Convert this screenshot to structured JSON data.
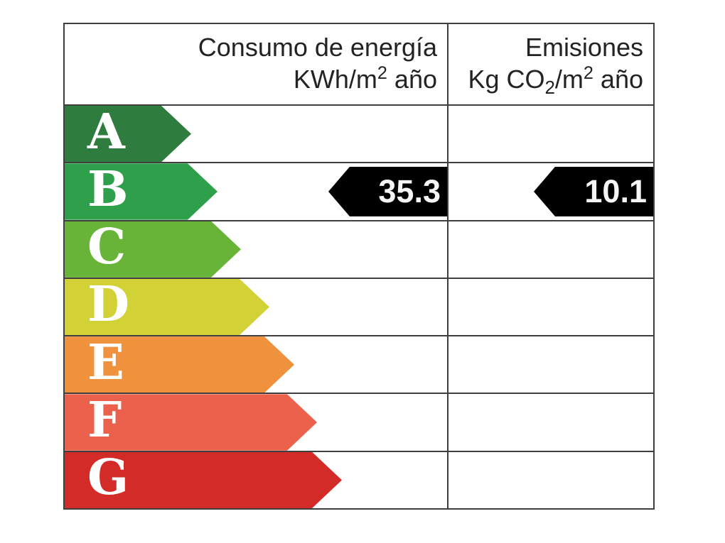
{
  "header": {
    "consumption": {
      "line1": "Consumo de energía",
      "unit_prefix": "KWh/m",
      "unit_exp": "2",
      "unit_suffix": " año"
    },
    "emissions": {
      "line1": "Emisiones",
      "unit_prefix": "Kg CO",
      "unit_sub": "2",
      "unit_mid": "/m",
      "unit_exp": "2",
      "unit_suffix": " año"
    }
  },
  "ratings": [
    {
      "letter": "A",
      "color": "#2f7c3f",
      "arrow_width": 178
    },
    {
      "letter": "B",
      "color": "#2ea04c",
      "arrow_width": 215
    },
    {
      "letter": "C",
      "color": "#68b438",
      "arrow_width": 248
    },
    {
      "letter": "D",
      "color": "#d2d136",
      "arrow_width": 288
    },
    {
      "letter": "E",
      "color": "#ef913d",
      "arrow_width": 323
    },
    {
      "letter": "F",
      "color": "#eb614c",
      "arrow_width": 355
    },
    {
      "letter": "G",
      "color": "#d32b27",
      "arrow_width": 390
    }
  ],
  "current_rating": {
    "letter": "B",
    "consumption_value": "35.3",
    "emissions_value": "10.1"
  },
  "colors": {
    "grid_border": "#3f3f3f",
    "value_arrow_bg": "#000000",
    "value_text": "#f5f5f5",
    "rating_letter_text": "#ffffff",
    "header_text": "#232323"
  },
  "chart_data": {
    "type": "table",
    "title": "Etiqueta de eficiencia energética (energy efficiency certificate label)",
    "columns": [
      "Consumo de energía KWh/m2 año",
      "Emisiones Kg CO2/m2 año"
    ],
    "scale_categories": [
      "A",
      "B",
      "C",
      "D",
      "E",
      "F",
      "G"
    ],
    "scale_colors": [
      "#2f7c3f",
      "#2ea04c",
      "#68b438",
      "#d2d136",
      "#ef913d",
      "#eb614c",
      "#d32b27"
    ],
    "assigned_rating": "B",
    "values": {
      "consumo_energia_kwh_m2_ano": 35.3,
      "emisiones_kg_co2_m2_ano": 10.1
    },
    "legend_position": "none",
    "grid": true
  }
}
